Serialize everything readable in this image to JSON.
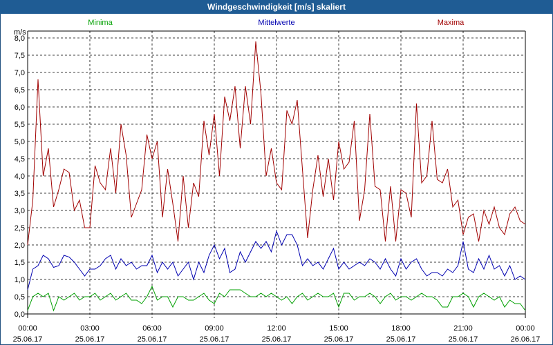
{
  "window": {
    "title": "Windgeschwindigkeit [m/s] skaliert"
  },
  "chart_data": {
    "type": "line",
    "title": "Windgeschwindigkeit [m/s] skaliert",
    "ylabel": "m/s",
    "ylim": [
      0,
      8
    ],
    "xlim": [
      "25.06.17 00:00",
      "26.06.17 00:00"
    ],
    "grid": true,
    "legend": "top",
    "y_ticks": [
      "0,0",
      "0,5",
      "1,0",
      "1,5",
      "2,0",
      "2,5",
      "3,0",
      "3,5",
      "4,0",
      "4,5",
      "5,0",
      "5,5",
      "6,0",
      "6,5",
      "7,0",
      "7,5",
      "8,0"
    ],
    "x_ticks": [
      {
        "time": "00:00",
        "date": "25.06.17"
      },
      {
        "time": "03:00",
        "date": "25.06.17"
      },
      {
        "time": "06:00",
        "date": "25.06.17"
      },
      {
        "time": "09:00",
        "date": "25.06.17"
      },
      {
        "time": "12:00",
        "date": "25.06.17"
      },
      {
        "time": "15:00",
        "date": "25.06.17"
      },
      {
        "time": "18:00",
        "date": "25.06.17"
      },
      {
        "time": "21:00",
        "date": "25.06.17"
      },
      {
        "time": "00:00",
        "date": "26.06.17"
      }
    ],
    "series": [
      {
        "name": "Minima",
        "color": "#00a000",
        "x": [
          0,
          0.25,
          0.5,
          0.75,
          1,
          1.25,
          1.5,
          1.75,
          2,
          2.25,
          2.5,
          2.75,
          3,
          3.25,
          3.5,
          3.75,
          4,
          4.25,
          4.5,
          4.75,
          5,
          5.25,
          5.5,
          5.75,
          6,
          6.25,
          6.5,
          6.75,
          7,
          7.25,
          7.5,
          7.75,
          8,
          8.25,
          8.5,
          8.75,
          9,
          9.25,
          9.5,
          9.75,
          10,
          10.25,
          10.5,
          10.75,
          11,
          11.25,
          11.5,
          11.75,
          12,
          12.25,
          12.5,
          12.75,
          13,
          13.25,
          13.5,
          13.75,
          14,
          14.25,
          14.5,
          14.75,
          15,
          15.25,
          15.5,
          15.75,
          16,
          16.25,
          16.5,
          16.75,
          17,
          17.25,
          17.5,
          17.75,
          18,
          18.25,
          18.5,
          18.75,
          19,
          19.25,
          19.5,
          19.75,
          20,
          20.25,
          20.5,
          20.75,
          21,
          21.25,
          21.5,
          21.75,
          22,
          22.25,
          22.5,
          22.75,
          23,
          23.25,
          23.5,
          23.75,
          24
        ],
        "y": [
          0.1,
          0.5,
          0.6,
          0.5,
          0.6,
          0.1,
          0.5,
          0.4,
          0.5,
          0.6,
          0.4,
          0.5,
          0.5,
          0.6,
          0.4,
          0.5,
          0.6,
          0.4,
          0.5,
          0.6,
          0.4,
          0.4,
          0.3,
          0.5,
          0.8,
          0.4,
          0.5,
          0.5,
          0.2,
          0.5,
          0.5,
          0.4,
          0.4,
          0.5,
          0.6,
          0.4,
          0.3,
          0.6,
          0.5,
          0.7,
          0.7,
          0.7,
          0.6,
          0.5,
          0.5,
          0.6,
          0.5,
          0.6,
          0.5,
          0.4,
          0.5,
          0.3,
          0.5,
          0.6,
          0.4,
          0.5,
          0.6,
          0.5,
          0.5,
          0.6,
          0.2,
          0.6,
          0.6,
          0.4,
          0.5,
          0.5,
          0.6,
          0.5,
          0.3,
          0.5,
          0.6,
          0.4,
          0.5,
          0.5,
          0.4,
          0.5,
          0.6,
          0.5,
          0.5,
          0.4,
          0.2,
          0.2,
          0.5,
          0.5,
          0.6,
          0.5,
          0.2,
          0.5,
          0.6,
          0.5,
          0.4,
          0.5,
          0.2,
          0.4,
          0.3,
          0.3,
          0.1
        ]
      },
      {
        "name": "Mittelwerte",
        "color": "#0000b0",
        "x": [
          0,
          0.25,
          0.5,
          0.75,
          1,
          1.25,
          1.5,
          1.75,
          2,
          2.25,
          2.5,
          2.75,
          3,
          3.25,
          3.5,
          3.75,
          4,
          4.25,
          4.5,
          4.75,
          5,
          5.25,
          5.5,
          5.75,
          6,
          6.25,
          6.5,
          6.75,
          7,
          7.25,
          7.5,
          7.75,
          8,
          8.25,
          8.5,
          8.75,
          9,
          9.25,
          9.5,
          9.75,
          10,
          10.25,
          10.5,
          10.75,
          11,
          11.25,
          11.5,
          11.75,
          12,
          12.25,
          12.5,
          12.75,
          13,
          13.25,
          13.5,
          13.75,
          14,
          14.25,
          14.5,
          14.75,
          15,
          15.25,
          15.5,
          15.75,
          16,
          16.25,
          16.5,
          16.75,
          17,
          17.25,
          17.5,
          17.75,
          18,
          18.25,
          18.5,
          18.75,
          19,
          19.25,
          19.5,
          19.75,
          20,
          20.25,
          20.5,
          20.75,
          21,
          21.25,
          21.5,
          21.75,
          22,
          22.25,
          22.5,
          22.75,
          23,
          23.25,
          23.5,
          23.75,
          24
        ],
        "y": [
          0.7,
          1.3,
          1.4,
          1.7,
          1.6,
          1.35,
          1.4,
          1.7,
          1.65,
          1.5,
          1.3,
          1.1,
          1.3,
          1.3,
          1.4,
          1.6,
          1.7,
          1.3,
          1.6,
          1.4,
          1.5,
          1.3,
          1.4,
          1.4,
          1.7,
          1.2,
          1.5,
          1.3,
          1.5,
          1.1,
          1.3,
          1.5,
          1.0,
          1.5,
          1.2,
          1.7,
          2.0,
          1.6,
          1.9,
          1.2,
          1.3,
          1.8,
          1.5,
          1.8,
          2.1,
          1.9,
          2.1,
          1.8,
          2.4,
          2.0,
          2.3,
          2.3,
          2.0,
          1.4,
          1.6,
          1.4,
          1.5,
          1.3,
          1.6,
          1.9,
          1.3,
          1.5,
          1.3,
          1.4,
          1.5,
          1.4,
          1.6,
          1.5,
          1.3,
          1.6,
          1.3,
          1.1,
          1.6,
          1.3,
          1.5,
          1.6,
          1.3,
          1.1,
          1.2,
          1.2,
          1.1,
          1.3,
          1.2,
          1.4,
          2.1,
          1.3,
          1.2,
          1.6,
          1.3,
          1.7,
          1.3,
          1.4,
          1.1,
          1.4,
          1.0,
          1.1,
          1.0
        ]
      },
      {
        "name": "Maxima",
        "color": "#a00000",
        "x": [
          0,
          0.25,
          0.5,
          0.75,
          1,
          1.25,
          1.5,
          1.75,
          2,
          2.25,
          2.5,
          2.75,
          3,
          3.25,
          3.5,
          3.75,
          4,
          4.25,
          4.5,
          4.75,
          5,
          5.25,
          5.5,
          5.75,
          6,
          6.25,
          6.5,
          6.75,
          7,
          7.25,
          7.5,
          7.75,
          8,
          8.25,
          8.5,
          8.75,
          9,
          9.25,
          9.5,
          9.75,
          10,
          10.25,
          10.5,
          10.75,
          11,
          11.25,
          11.5,
          11.75,
          12,
          12.25,
          12.5,
          12.75,
          13,
          13.25,
          13.5,
          13.75,
          14,
          14.25,
          14.5,
          14.75,
          15,
          15.25,
          15.5,
          15.75,
          16,
          16.25,
          16.5,
          16.75,
          17,
          17.25,
          17.5,
          17.75,
          18,
          18.25,
          18.5,
          18.75,
          19,
          19.25,
          19.5,
          19.75,
          20,
          20.25,
          20.5,
          20.75,
          21,
          21.25,
          21.5,
          21.75,
          22,
          22.25,
          22.5,
          22.75,
          23,
          23.25,
          23.5,
          23.75,
          24
        ],
        "y": [
          2.0,
          3.3,
          6.8,
          4.0,
          4.8,
          3.1,
          3.6,
          4.2,
          4.1,
          3.0,
          3.3,
          2.5,
          2.5,
          4.3,
          3.8,
          3.6,
          4.8,
          3.5,
          5.5,
          4.6,
          2.8,
          3.2,
          3.6,
          5.2,
          4.5,
          5.0,
          2.8,
          4.2,
          3.2,
          2.1,
          4.0,
          2.5,
          3.8,
          3.4,
          5.6,
          4.6,
          5.8,
          4.0,
          6.3,
          5.6,
          6.6,
          4.8,
          6.6,
          5.5,
          7.9,
          6.4,
          4.0,
          4.8,
          3.8,
          3.6,
          5.9,
          5.5,
          6.2,
          4.2,
          2.2,
          3.6,
          4.6,
          3.4,
          4.5,
          3.3,
          5.0,
          4.2,
          4.4,
          5.6,
          2.7,
          3.6,
          5.8,
          3.7,
          3.6,
          2.1,
          3.7,
          2.1,
          3.6,
          3.5,
          2.8,
          6.1,
          3.8,
          4.0,
          5.6,
          3.9,
          3.8,
          4.2,
          3.1,
          3.3,
          2.3,
          2.8,
          2.9,
          2.1,
          3.0,
          2.6,
          3.1,
          2.5,
          2.3,
          2.9,
          3.1,
          2.7,
          2.6
        ]
      }
    ]
  }
}
